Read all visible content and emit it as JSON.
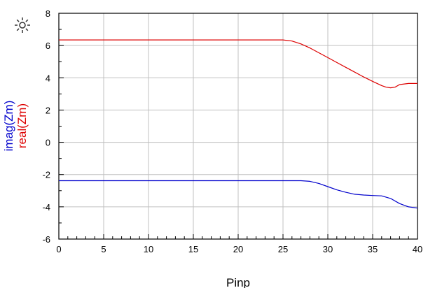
{
  "chart_data": {
    "type": "line",
    "xlabel": "Pinp",
    "ylabels": [
      {
        "text": "imag(Zm)",
        "color": "#0000cc"
      },
      {
        "text": "real(Zm)",
        "color": "#dd0000"
      }
    ],
    "xlim": [
      0,
      40
    ],
    "ylim": [
      -6,
      8
    ],
    "xticks": [
      0,
      5,
      10,
      15,
      20,
      25,
      30,
      35,
      40
    ],
    "yticks": [
      -6,
      -4,
      -2,
      0,
      2,
      4,
      6,
      8
    ],
    "x_minor_step": 1,
    "y_minor_step": 1,
    "grid": true,
    "legend": "none",
    "series": [
      {
        "name": "real(Zm)",
        "color": "#dd0000",
        "x": [
          0,
          5,
          10,
          15,
          20,
          25,
          26,
          27,
          28,
          29,
          30,
          31,
          32,
          33,
          34,
          35,
          36,
          36.5,
          37,
          37.5,
          38,
          39,
          40
        ],
        "y": [
          6.35,
          6.35,
          6.35,
          6.35,
          6.35,
          6.35,
          6.28,
          6.1,
          5.85,
          5.55,
          5.25,
          4.95,
          4.65,
          4.35,
          4.05,
          3.78,
          3.52,
          3.42,
          3.38,
          3.42,
          3.58,
          3.65,
          3.65
        ]
      },
      {
        "name": "imag(Zm)",
        "color": "#0000cc",
        "x": [
          0,
          5,
          10,
          15,
          20,
          25,
          27,
          28,
          29,
          30,
          31,
          32,
          33,
          34,
          35,
          36,
          37,
          38,
          39,
          40
        ],
        "y": [
          -2.38,
          -2.38,
          -2.38,
          -2.38,
          -2.38,
          -2.38,
          -2.38,
          -2.42,
          -2.55,
          -2.75,
          -2.95,
          -3.1,
          -3.22,
          -3.27,
          -3.3,
          -3.32,
          -3.48,
          -3.8,
          -4.0,
          -4.08
        ]
      }
    ]
  },
  "icon": "sun-icon"
}
